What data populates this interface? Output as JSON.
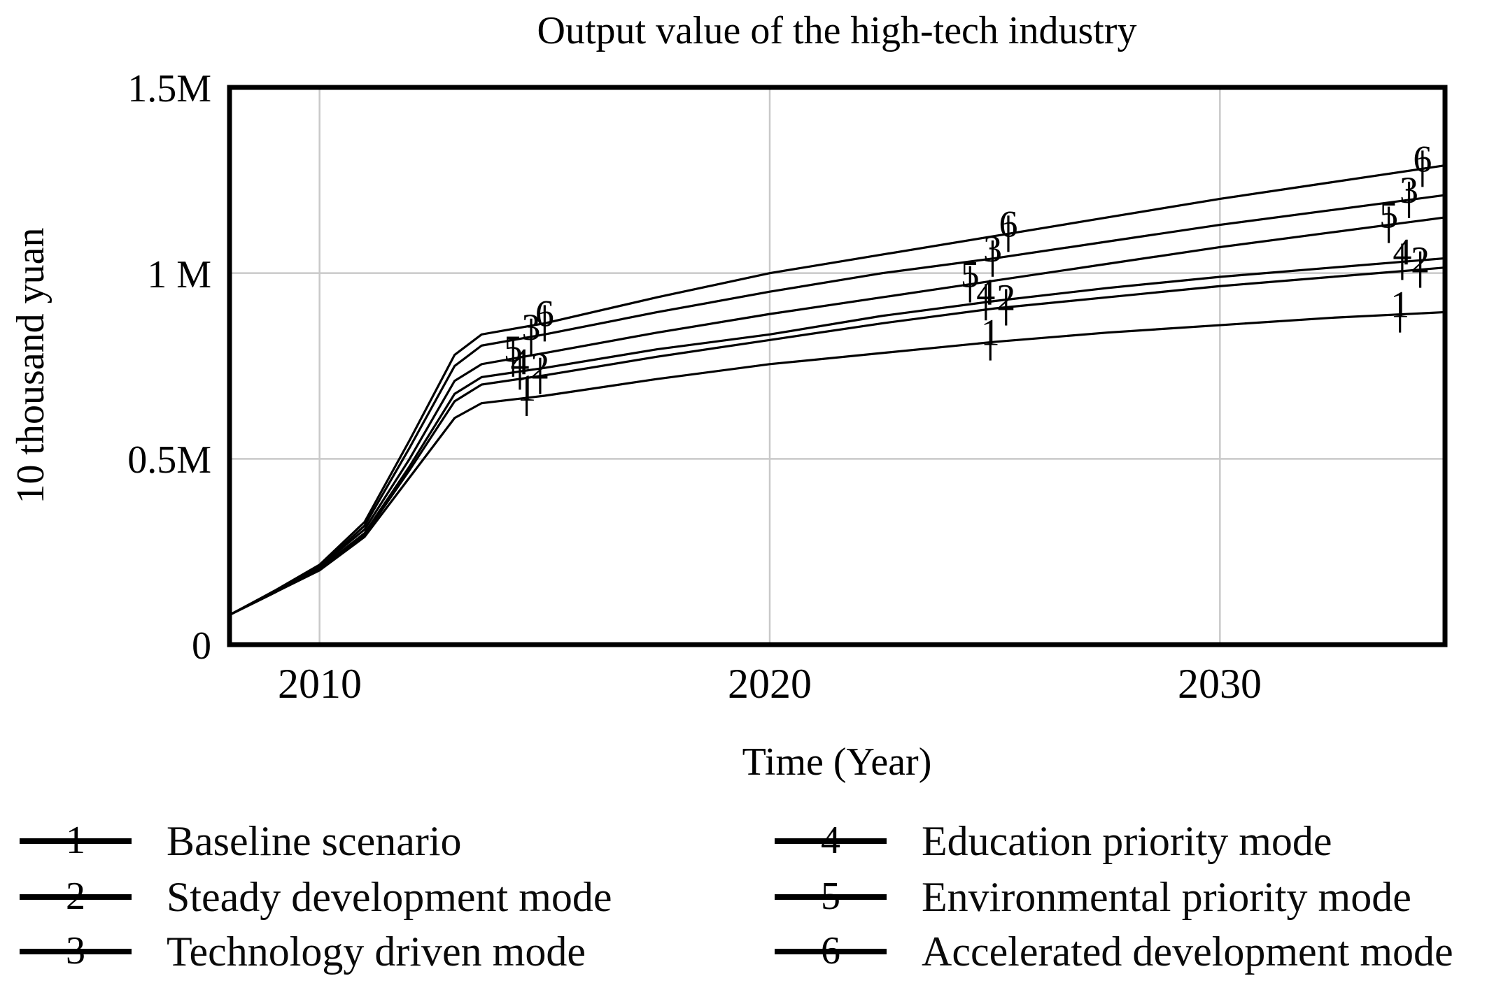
{
  "chart_data": {
    "type": "line",
    "title": "Output value of the high-tech industry",
    "xlabel": "Time (Year)",
    "ylabel": "10 thousand yuan",
    "x_range": [
      2008,
      2035
    ],
    "y_range": [
      0,
      1.5
    ],
    "y_unit": "M",
    "grid": true,
    "x_ticks": [
      {
        "value": 2010,
        "label": "2010"
      },
      {
        "value": 2020,
        "label": "2020"
      },
      {
        "value": 2030,
        "label": "2030"
      }
    ],
    "y_ticks": [
      {
        "value": 0,
        "label": "0"
      },
      {
        "value": 0.5,
        "label": "0.5M"
      },
      {
        "value": 1,
        "label": "1 M"
      },
      {
        "value": 1.5,
        "label": "1.5M"
      }
    ],
    "x": [
      2008,
      2009,
      2010,
      2011,
      2012,
      2013,
      2013.6,
      2015,
      2017.5,
      2020,
      2022.5,
      2025,
      2027.5,
      2030,
      2032.5,
      2035
    ],
    "series": [
      {
        "num": "1",
        "name": "Baseline scenario",
        "values": [
          0.08,
          0.14,
          0.2,
          0.29,
          0.45,
          0.61,
          0.65,
          0.67,
          0.715,
          0.755,
          0.785,
          0.815,
          0.84,
          0.86,
          0.88,
          0.895
        ],
        "label_years": [
          2014.6,
          2024.9,
          2034.0
        ]
      },
      {
        "num": "2",
        "name": "Steady development mode",
        "values": [
          0.08,
          0.14,
          0.205,
          0.295,
          0.47,
          0.655,
          0.7,
          0.725,
          0.775,
          0.82,
          0.865,
          0.905,
          0.935,
          0.965,
          0.99,
          1.015
        ],
        "label_years": [
          2014.9,
          2025.25,
          2034.45
        ]
      },
      {
        "num": "3",
        "name": "Technology driven mode",
        "values": [
          0.08,
          0.14,
          0.21,
          0.32,
          0.53,
          0.75,
          0.805,
          0.835,
          0.895,
          0.95,
          1.0,
          1.04,
          1.085,
          1.13,
          1.17,
          1.21
        ],
        "label_years": [
          2014.7,
          2024.95,
          2034.2
        ]
      },
      {
        "num": "4",
        "name": "Education priority mode",
        "values": [
          0.08,
          0.14,
          0.205,
          0.3,
          0.48,
          0.675,
          0.72,
          0.745,
          0.795,
          0.835,
          0.885,
          0.925,
          0.96,
          0.99,
          1.015,
          1.04
        ],
        "label_years": [
          2014.45,
          2024.8,
          2034.05
        ]
      },
      {
        "num": "5",
        "name": "Environmental priority mode",
        "values": [
          0.08,
          0.14,
          0.21,
          0.31,
          0.5,
          0.71,
          0.755,
          0.785,
          0.84,
          0.89,
          0.935,
          0.98,
          1.025,
          1.07,
          1.11,
          1.15
        ],
        "label_years": [
          2014.3,
          2024.45,
          2033.75
        ]
      },
      {
        "num": "6",
        "name": "Accelerated development mode",
        "values": [
          0.08,
          0.145,
          0.215,
          0.33,
          0.55,
          0.78,
          0.835,
          0.865,
          0.935,
          1.0,
          1.05,
          1.1,
          1.15,
          1.2,
          1.245,
          1.29
        ],
        "label_years": [
          2015.0,
          2025.3,
          2034.5
        ]
      }
    ],
    "colors": {
      "line": "#000000",
      "grid": "#c9c9c9",
      "frame": "#000000"
    }
  },
  "legend": {
    "left": [
      {
        "num": "1",
        "label": "Baseline scenario"
      },
      {
        "num": "2",
        "label": "Steady development mode"
      },
      {
        "num": "3",
        "label": "Technology driven mode"
      }
    ],
    "right": [
      {
        "num": "4",
        "label": "Education priority mode"
      },
      {
        "num": "5",
        "label": "Environmental priority mode"
      },
      {
        "num": "6",
        "label": "Accelerated development mode"
      }
    ]
  }
}
